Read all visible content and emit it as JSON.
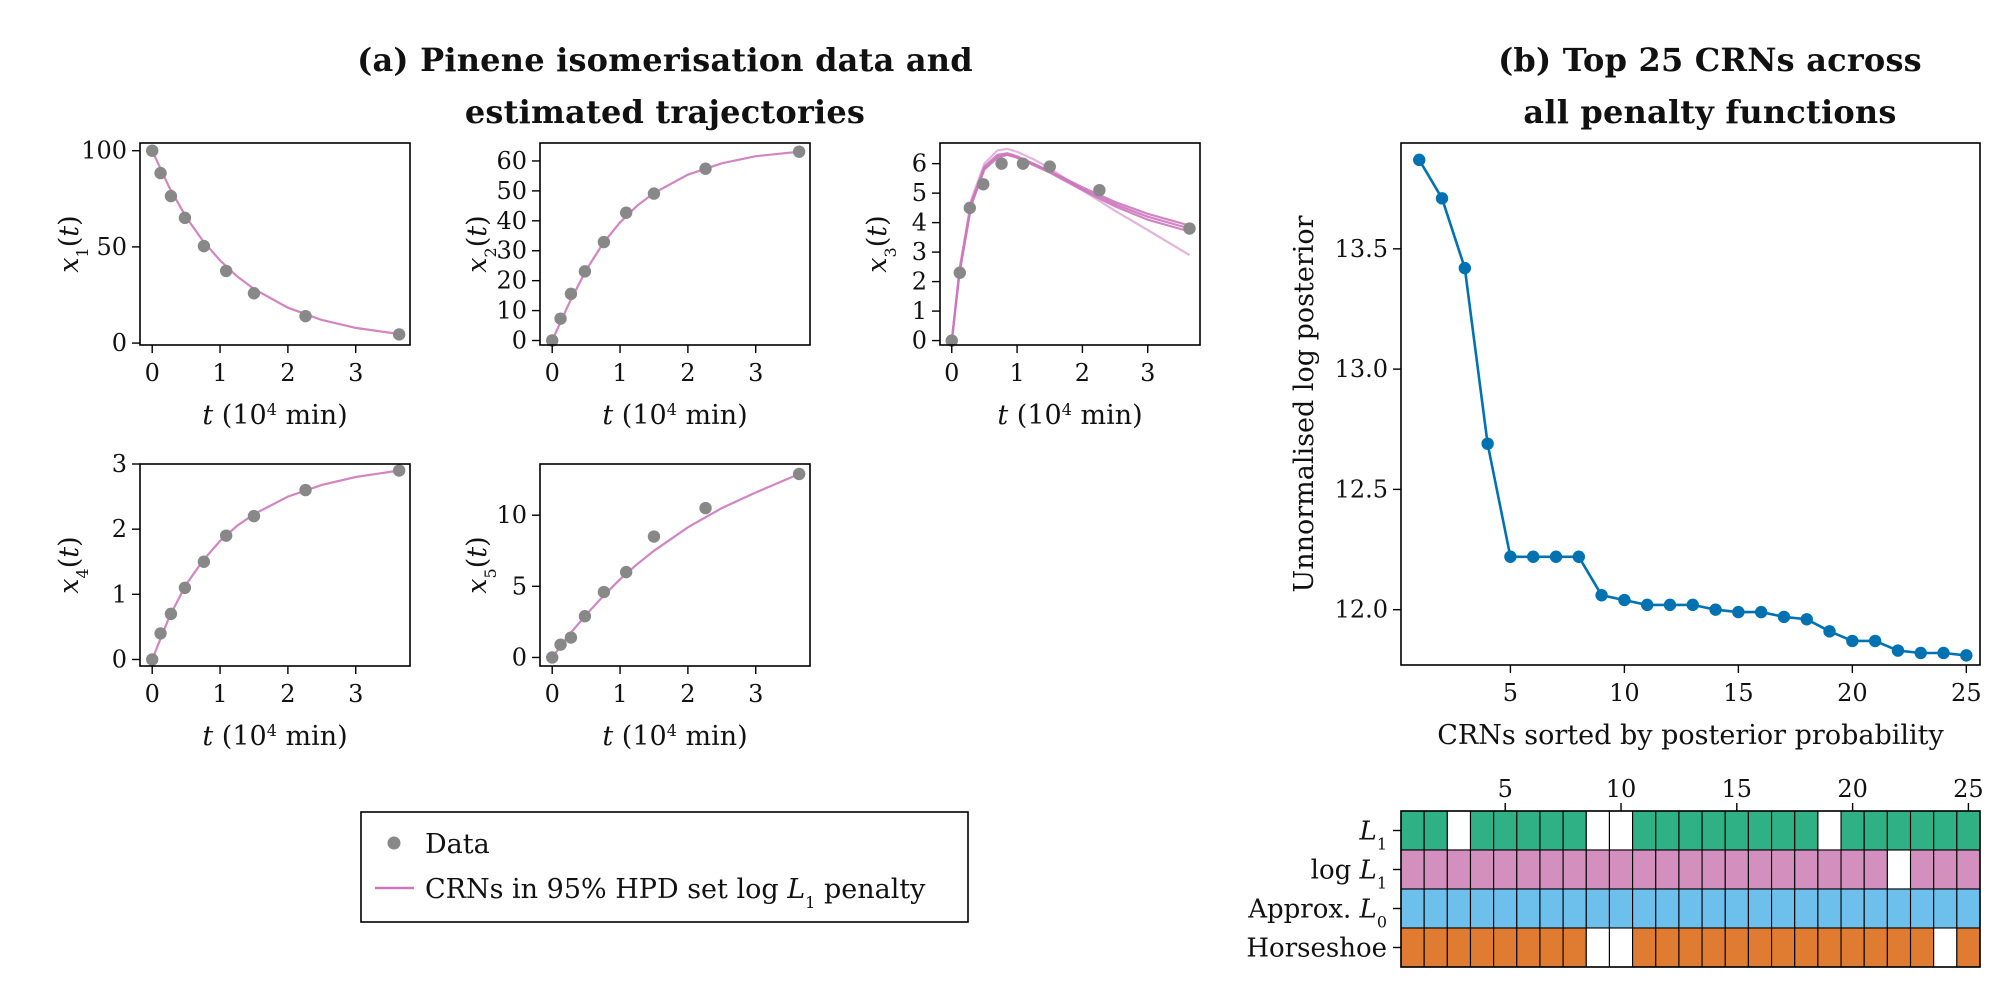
{
  "panel_a": {
    "title_line1": "(a) Pinene isomerisation data and",
    "title_line2": "estimated trajectories"
  },
  "panel_b": {
    "title_line1": "(b) Top 25 CRNs across",
    "title_line2": "all penalty functions"
  },
  "colors": {
    "data_marker": "#888888",
    "crn_trajectory": "#cc78bc",
    "posterior_line": "#0072b2",
    "L1": "#2fb085",
    "logL1": "#d38fbe",
    "approxL0": "#6ec0ec",
    "horseshoe": "#e07b32"
  },
  "legend": {
    "data_label": "Data",
    "crn_label": "CRNs in 95% HPD set log L1 penalty"
  },
  "chart_data": [
    {
      "type": "scatter",
      "id": "x1",
      "ylabel": "x1(t)",
      "xlabel": "t (10^4 min)",
      "xticks": [
        0,
        1,
        2,
        3
      ],
      "yticks": [
        0,
        50,
        100
      ],
      "xlim": [
        -0.18,
        3.8
      ],
      "ylim": [
        -1,
        104
      ],
      "data_x": [
        0,
        0.123,
        0.276,
        0.482,
        0.762,
        1.09,
        1.5,
        2.26,
        3.64
      ],
      "data_y": [
        100,
        88.35,
        76.4,
        65.1,
        50.4,
        37.5,
        25.9,
        14.0,
        4.5
      ],
      "trajectories": [
        {
          "x": [
            0,
            0.25,
            0.5,
            0.75,
            1.0,
            1.25,
            1.5,
            2.0,
            2.5,
            3.0,
            3.64
          ],
          "y": [
            100,
            81.0,
            65.5,
            53.0,
            42.9,
            34.7,
            28.1,
            18.4,
            12.0,
            7.9,
            4.7
          ]
        }
      ]
    },
    {
      "type": "scatter",
      "id": "x2",
      "ylabel": "x2(t)",
      "xlabel": "t (10^4 min)",
      "xticks": [
        0,
        1,
        2,
        3
      ],
      "yticks": [
        0,
        10,
        20,
        30,
        40,
        50,
        60
      ],
      "xlim": [
        -0.18,
        3.8
      ],
      "ylim": [
        -1.5,
        66
      ],
      "data_x": [
        0,
        0.123,
        0.276,
        0.482,
        0.762,
        1.09,
        1.5,
        2.26,
        3.64
      ],
      "data_y": [
        0,
        7.3,
        15.6,
        23.1,
        32.9,
        42.7,
        49.1,
        57.4,
        63.1
      ],
      "trajectories": [
        {
          "x": [
            0,
            0.25,
            0.5,
            0.75,
            1.0,
            1.25,
            1.5,
            2.0,
            2.5,
            3.0,
            3.64
          ],
          "y": [
            0,
            12.5,
            23.5,
            32.5,
            39.5,
            45.0,
            49.3,
            55.4,
            59.2,
            61.6,
            63.1
          ]
        }
      ]
    },
    {
      "type": "scatter",
      "id": "x3",
      "ylabel": "x3(t)",
      "xlabel": "t (10^4 min)",
      "xticks": [
        0,
        1,
        2,
        3
      ],
      "yticks": [
        0,
        1,
        2,
        3,
        4,
        5,
        6
      ],
      "xlim": [
        -0.18,
        3.8
      ],
      "ylim": [
        -0.15,
        6.7
      ],
      "data_x": [
        0,
        0.123,
        0.276,
        0.482,
        0.762,
        1.09,
        1.5,
        2.26,
        3.64
      ],
      "data_y": [
        0,
        2.3,
        4.5,
        5.3,
        6.0,
        6.0,
        5.9,
        5.1,
        3.8
      ],
      "trajectories": [
        {
          "x": [
            0,
            0.12,
            0.3,
            0.5,
            0.7,
            0.85,
            1.0,
            1.25,
            1.5,
            2.0,
            2.5,
            3.0,
            3.64
          ],
          "y": [
            0,
            2.4,
            4.7,
            5.9,
            6.3,
            6.35,
            6.25,
            6.0,
            5.75,
            5.2,
            4.7,
            4.3,
            3.9
          ]
        },
        {
          "x": [
            0,
            0.12,
            0.3,
            0.5,
            0.7,
            0.85,
            1.0,
            1.25,
            1.5,
            2.0,
            2.5,
            3.0,
            3.64
          ],
          "y": [
            0,
            2.3,
            4.6,
            5.8,
            6.2,
            6.3,
            6.2,
            5.95,
            5.7,
            5.1,
            4.55,
            4.1,
            3.7
          ]
        },
        {
          "x": [
            0,
            0.12,
            0.3,
            0.5,
            0.7,
            0.85,
            1.0,
            1.25,
            1.5,
            2.0,
            2.5,
            3.0,
            3.64
          ],
          "y": [
            0,
            2.35,
            4.65,
            5.85,
            6.25,
            6.3,
            6.22,
            5.98,
            5.72,
            5.15,
            4.62,
            4.2,
            3.8
          ]
        },
        {
          "x": [
            0,
            0.12,
            0.3,
            0.5,
            0.7,
            0.85,
            1.0,
            1.25,
            1.5,
            2.0,
            2.5,
            3.0,
            3.64
          ],
          "y": [
            0,
            2.45,
            4.8,
            6.0,
            6.45,
            6.5,
            6.4,
            6.15,
            5.85,
            5.1,
            4.4,
            3.75,
            2.9
          ]
        }
      ]
    },
    {
      "type": "scatter",
      "id": "x4",
      "ylabel": "x4(t)",
      "xlabel": "t (10^4 min)",
      "xticks": [
        0,
        1,
        2,
        3
      ],
      "yticks": [
        0,
        1,
        2,
        3
      ],
      "xlim": [
        -0.18,
        3.8
      ],
      "ylim": [
        -0.1,
        3.0
      ],
      "data_x": [
        0,
        0.123,
        0.276,
        0.482,
        0.762,
        1.09,
        1.5,
        2.26,
        3.64
      ],
      "data_y": [
        0,
        0.4,
        0.7,
        1.1,
        1.5,
        1.9,
        2.2,
        2.6,
        2.9
      ],
      "trajectories": [
        {
          "x": [
            0,
            0.25,
            0.5,
            0.75,
            1.0,
            1.25,
            1.5,
            2.0,
            2.5,
            3.0,
            3.64
          ],
          "y": [
            0,
            0.65,
            1.15,
            1.52,
            1.82,
            2.05,
            2.23,
            2.5,
            2.68,
            2.8,
            2.9
          ]
        }
      ]
    },
    {
      "type": "scatter",
      "id": "x5",
      "ylabel": "x5(t)",
      "xlabel": "t (10^4 min)",
      "xticks": [
        0,
        1,
        2,
        3
      ],
      "yticks": [
        0,
        5,
        10
      ],
      "xlim": [
        -0.18,
        3.8
      ],
      "ylim": [
        -0.6,
        13.6
      ],
      "data_x": [
        0,
        0.123,
        0.276,
        0.482,
        0.762,
        1.09,
        1.5,
        2.26,
        3.64
      ],
      "data_y": [
        0,
        0.9,
        1.4,
        2.9,
        4.6,
        6.0,
        8.5,
        10.5,
        12.9
      ],
      "trajectories": [
        {
          "x": [
            0,
            0.25,
            0.5,
            0.75,
            1.0,
            1.25,
            1.5,
            2.0,
            2.5,
            3.0,
            3.64
          ],
          "y": [
            0,
            1.6,
            3.0,
            4.3,
            5.5,
            6.55,
            7.5,
            9.15,
            10.5,
            11.6,
            12.9
          ]
        }
      ]
    },
    {
      "type": "line",
      "id": "posterior",
      "xlabel": "CRNs sorted by posterior probability",
      "ylabel": "Unnormalised log posterior",
      "xticks": [
        5,
        10,
        15,
        20,
        25
      ],
      "yticks": [
        12.0,
        12.5,
        13.0,
        13.5
      ],
      "xlim": [
        0.2,
        25.6
      ],
      "ylim": [
        11.77,
        13.94
      ],
      "x": [
        1,
        2,
        3,
        4,
        5,
        6,
        7,
        8,
        9,
        10,
        11,
        12,
        13,
        14,
        15,
        16,
        17,
        18,
        19,
        20,
        21,
        22,
        23,
        24,
        25
      ],
      "y": [
        13.87,
        13.71,
        13.42,
        12.69,
        12.22,
        12.22,
        12.22,
        12.22,
        12.06,
        12.04,
        12.02,
        12.02,
        12.02,
        12.0,
        11.99,
        11.99,
        11.97,
        11.96,
        11.91,
        11.87,
        11.87,
        11.83,
        11.82,
        11.82,
        11.81
      ]
    },
    {
      "type": "heatmap",
      "id": "penalty_grid",
      "xticks": [
        5,
        10,
        15,
        20,
        25
      ],
      "rows": [
        {
          "label": "L1",
          "cells": [
            1,
            1,
            0,
            1,
            1,
            1,
            1,
            1,
            0,
            0,
            1,
            1,
            1,
            1,
            1,
            1,
            1,
            1,
            0,
            1,
            1,
            1,
            1,
            1,
            1
          ]
        },
        {
          "label": "log L1",
          "cells": [
            1,
            1,
            1,
            1,
            1,
            1,
            1,
            1,
            1,
            1,
            1,
            1,
            1,
            1,
            1,
            1,
            1,
            1,
            1,
            1,
            1,
            0,
            1,
            1,
            1
          ]
        },
        {
          "label": "Approx. L0",
          "cells": [
            1,
            1,
            1,
            1,
            1,
            1,
            1,
            1,
            1,
            1,
            1,
            1,
            1,
            1,
            1,
            1,
            1,
            1,
            1,
            1,
            1,
            1,
            1,
            1,
            1
          ]
        },
        {
          "label": "Horseshoe",
          "cells": [
            1,
            1,
            1,
            1,
            1,
            1,
            1,
            1,
            0,
            0,
            1,
            1,
            1,
            1,
            1,
            1,
            1,
            1,
            1,
            1,
            1,
            1,
            1,
            0,
            1
          ]
        }
      ]
    }
  ]
}
